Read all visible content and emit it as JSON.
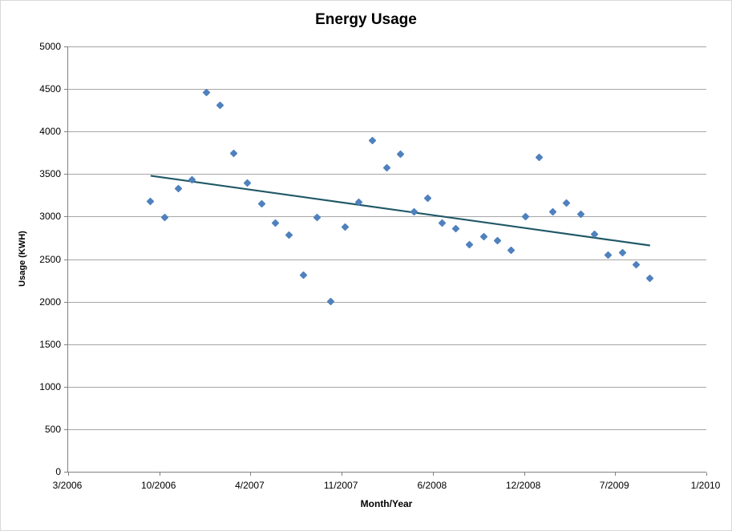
{
  "chart_data": {
    "type": "scatter",
    "title": "Energy Usage",
    "xlabel": "Month/Year",
    "ylabel": "Usage (KWH)",
    "ylim": [
      0,
      5000
    ],
    "y_tick_step": 500,
    "y_tick_labels": [
      "0",
      "500",
      "1000",
      "1500",
      "2000",
      "2500",
      "3000",
      "3500",
      "4000",
      "4500",
      "5000"
    ],
    "x_tick_labels": [
      "3/2006",
      "10/2006",
      "4/2007",
      "11/2007",
      "6/2008",
      "12/2008",
      "7/2009",
      "1/2010"
    ],
    "x_domain": [
      "3/2006",
      "1/2010"
    ],
    "x_ticks_evenly_spaced": true,
    "grid": "horizontal",
    "legend": "none",
    "marker": {
      "shape": "diamond",
      "color": "#4f81bd"
    },
    "points": [
      {
        "month": "9/2006",
        "kwh": 3180
      },
      {
        "month": "10/2006",
        "kwh": 2990
      },
      {
        "month": "11/2006",
        "kwh": 3330
      },
      {
        "month": "12/2006",
        "kwh": 3430
      },
      {
        "month": "1/2007",
        "kwh": 4460
      },
      {
        "month": "2/2007",
        "kwh": 4310
      },
      {
        "month": "3/2007",
        "kwh": 3740
      },
      {
        "month": "4/2007",
        "kwh": 3390
      },
      {
        "month": "5/2007",
        "kwh": 3150
      },
      {
        "month": "6/2007",
        "kwh": 2920
      },
      {
        "month": "7/2007",
        "kwh": 2780
      },
      {
        "month": "8/2007",
        "kwh": 2310
      },
      {
        "month": "9/2007",
        "kwh": 2990
      },
      {
        "month": "10/2007",
        "kwh": 2000
      },
      {
        "month": "11/2007",
        "kwh": 2880
      },
      {
        "month": "12/2007",
        "kwh": 3170
      },
      {
        "month": "1/2008",
        "kwh": 3890
      },
      {
        "month": "2/2008",
        "kwh": 3570
      },
      {
        "month": "3/2008",
        "kwh": 3730
      },
      {
        "month": "4/2008",
        "kwh": 3060
      },
      {
        "month": "5/2008",
        "kwh": 3220
      },
      {
        "month": "6/2008",
        "kwh": 2920
      },
      {
        "month": "7/2008",
        "kwh": 2860
      },
      {
        "month": "8/2008",
        "kwh": 2670
      },
      {
        "month": "9/2008",
        "kwh": 2760
      },
      {
        "month": "10/2008",
        "kwh": 2720
      },
      {
        "month": "11/2008",
        "kwh": 2600
      },
      {
        "month": "12/2008",
        "kwh": 3000
      },
      {
        "month": "1/2009",
        "kwh": 3700
      },
      {
        "month": "2/2009",
        "kwh": 3060
      },
      {
        "month": "3/2009",
        "kwh": 3160
      },
      {
        "month": "4/2009",
        "kwh": 3030
      },
      {
        "month": "5/2009",
        "kwh": 2790
      },
      {
        "month": "6/2009",
        "kwh": 2550
      },
      {
        "month": "7/2009",
        "kwh": 2580
      },
      {
        "month": "8/2009",
        "kwh": 2430
      },
      {
        "month": "9/2009",
        "kwh": 2270
      }
    ],
    "trendline": {
      "type": "linear",
      "color": "#205867",
      "start": {
        "month": "9/2006",
        "kwh": 3480
      },
      "end": {
        "month": "9/2009",
        "kwh": 2660
      }
    }
  },
  "colors": {
    "marker": "#4f81bd",
    "trendline": "#205867",
    "gridline": "#a6a6a6",
    "axis": "#808080",
    "text": "#000000",
    "chart_border": "#d9d9d9"
  }
}
